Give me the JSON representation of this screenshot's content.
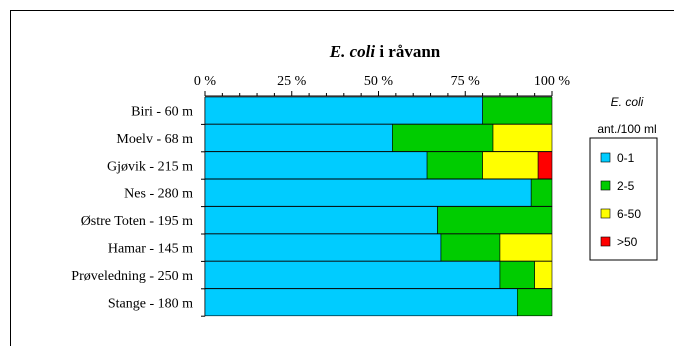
{
  "chart_data": {
    "type": "bar",
    "orientation": "horizontal",
    "stacked": "percent",
    "title_italic": "E. coli",
    "title_rest": "i råvann",
    "xlim": [
      0,
      100
    ],
    "tick_values": [
      0,
      25,
      50,
      75,
      100
    ],
    "tick_labels": [
      "0 %",
      "25 %",
      "50 %",
      "75 %",
      "100 %"
    ],
    "categories": [
      "Biri - 60 m",
      "Moelv - 68 m",
      "Gjøvik - 215 m",
      "Nes - 280 m",
      "Østre Toten - 195 m",
      "Hamar - 145 m",
      "Prøveledning - 250 m",
      "Stange - 180 m"
    ],
    "series": [
      {
        "name": "0-1",
        "color": "#00CCFF",
        "values": [
          80,
          54,
          64,
          94,
          67,
          68,
          85,
          90
        ]
      },
      {
        "name": "2-5",
        "color": "#00CC00",
        "values": [
          20,
          29,
          16,
          6,
          33,
          17,
          10,
          10
        ]
      },
      {
        "name": "6-50",
        "color": "#FFFF00",
        "values": [
          0,
          17,
          16,
          0,
          0,
          15,
          5,
          0
        ]
      },
      {
        "name": ">50",
        "color": "#FF0000",
        "values": [
          0,
          0,
          4,
          0,
          0,
          0,
          0,
          0
        ]
      }
    ],
    "legend": {
      "placement": "right",
      "title_line1": "E. coli",
      "title_line2": "ant./100 ml"
    },
    "grid": false
  }
}
